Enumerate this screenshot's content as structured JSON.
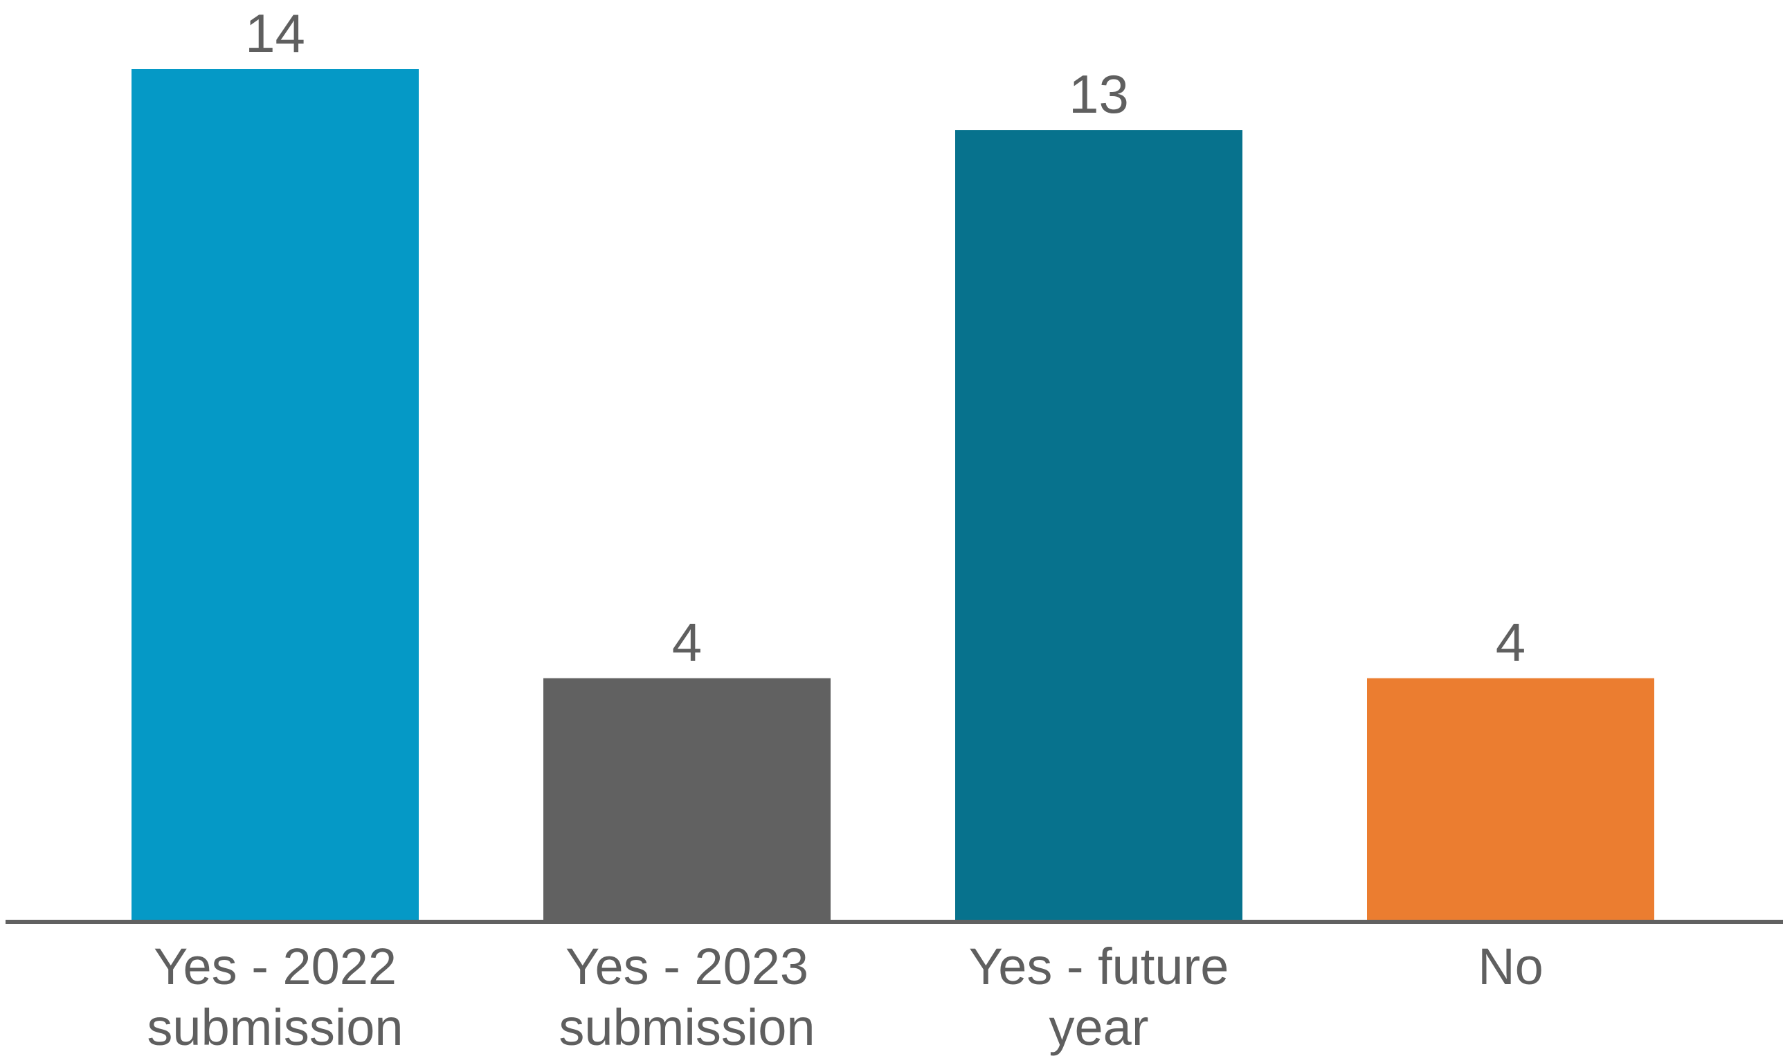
{
  "chart_data": {
    "type": "bar",
    "title": "",
    "xlabel": "",
    "ylabel": "",
    "categories": [
      [
        "Yes - 2022",
        "submission"
      ],
      [
        "Yes - 2023",
        "submission"
      ],
      [
        "Yes - future",
        "year"
      ],
      [
        "No"
      ]
    ],
    "values": [
      14,
      4,
      13,
      4
    ],
    "value_labels": [
      "14",
      "4",
      "13",
      "4"
    ],
    "colors": [
      "#0599c6",
      "#616161",
      "#07728d",
      "#eb7d30"
    ],
    "axis_color": "#616161",
    "ylim": [
      0,
      14
    ],
    "grid": false,
    "legend": "none"
  }
}
